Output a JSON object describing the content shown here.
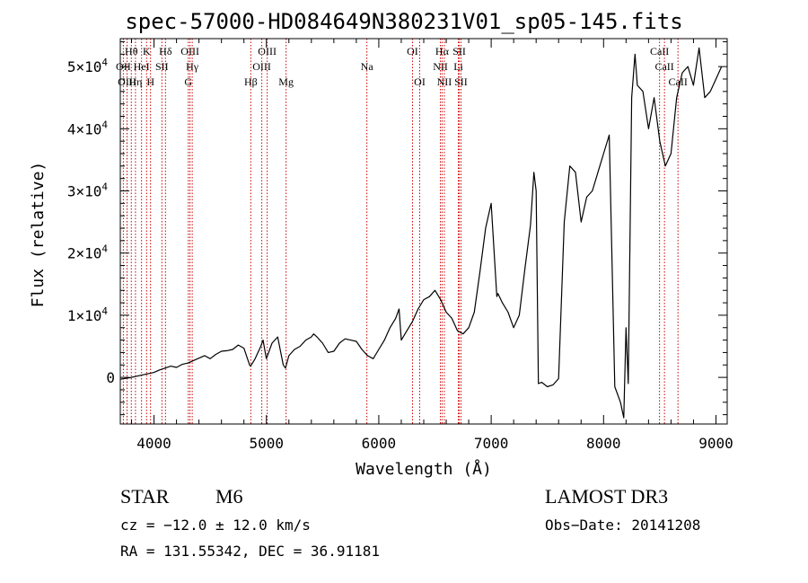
{
  "chart_data": {
    "type": "line",
    "title": "spec-57000-HD084649N380231V01_sp05-145.fits",
    "xlabel": "Wavelength (Å)",
    "ylabel": "Flux (relative)",
    "xlim": [
      3700,
      9100
    ],
    "ylim": [
      -7500,
      54500
    ],
    "x_ticks": [
      4000,
      5000,
      6000,
      7000,
      8000,
      9000
    ],
    "x_tick_labels": [
      "4000",
      "5000",
      "6000",
      "7000",
      "8000",
      "9000"
    ],
    "y_ticks": [
      0,
      10000,
      20000,
      30000,
      40000,
      50000
    ],
    "y_tick_labels": [
      {
        "base": "0",
        "exp": ""
      },
      {
        "base": "1×10",
        "exp": "4"
      },
      {
        "base": "2×10",
        "exp": "4"
      },
      {
        "base": "3×10",
        "exp": "4"
      },
      {
        "base": "4×10",
        "exp": "4"
      },
      {
        "base": "5×10",
        "exp": "4"
      }
    ],
    "line_color": "#000000",
    "marker_color": "#cc0000",
    "spectrum": {
      "x": [
        3700,
        3800,
        3900,
        4000,
        4050,
        4100,
        4150,
        4200,
        4250,
        4300,
        4350,
        4400,
        4450,
        4500,
        4550,
        4600,
        4650,
        4700,
        4750,
        4800,
        4850,
        4860,
        4900,
        4950,
        4970,
        5000,
        5050,
        5100,
        5150,
        5170,
        5200,
        5250,
        5300,
        5350,
        5400,
        5420,
        5450,
        5500,
        5550,
        5600,
        5650,
        5700,
        5750,
        5800,
        5850,
        5900,
        5950,
        6000,
        6050,
        6100,
        6150,
        6180,
        6200,
        6250,
        6300,
        6350,
        6400,
        6450,
        6500,
        6550,
        6600,
        6650,
        6700,
        6750,
        6800,
        6850,
        6900,
        6950,
        7000,
        7050,
        7060,
        7100,
        7150,
        7200,
        7250,
        7300,
        7350,
        7380,
        7400,
        7420,
        7450,
        7500,
        7550,
        7600,
        7650,
        7700,
        7750,
        7800,
        7850,
        7900,
        7950,
        8000,
        8050,
        8100,
        8150,
        8180,
        8200,
        8220,
        8250,
        8280,
        8300,
        8350,
        8400,
        8450,
        8500,
        8550,
        8600,
        8650,
        8700,
        8750,
        8800,
        8850,
        8900,
        8950,
        9000,
        9050
      ],
      "y": [
        -300,
        0,
        400,
        800,
        1200,
        1500,
        1800,
        1600,
        2100,
        2300,
        2700,
        3100,
        3500,
        3000,
        3700,
        4200,
        4300,
        4500,
        5200,
        4700,
        2000,
        1800,
        3000,
        5000,
        6000,
        3000,
        5500,
        6500,
        2000,
        1500,
        3500,
        4500,
        5000,
        6000,
        6500,
        7000,
        6500,
        5500,
        4000,
        4200,
        5500,
        6200,
        6000,
        5800,
        4500,
        3500,
        3000,
        4500,
        6000,
        8000,
        9500,
        11000,
        6000,
        7500,
        9000,
        11000,
        12500,
        13000,
        14000,
        12500,
        10500,
        9500,
        7500,
        7000,
        8000,
        10500,
        17000,
        24000,
        28000,
        13000,
        13500,
        12000,
        10500,
        8000,
        10000,
        17500,
        24500,
        33000,
        30000,
        -1000,
        -800,
        -1500,
        -1200,
        -200,
        25000,
        34000,
        33000,
        25000,
        29000,
        30000,
        33000,
        36000,
        39000,
        -1500,
        -4000,
        -6500,
        8000,
        -1000,
        45000,
        52000,
        47000,
        46000,
        40000,
        45000,
        38000,
        34000,
        36000,
        45000,
        49000,
        50000,
        47000,
        53000,
        45000,
        46000,
        48000,
        50000
      ]
    },
    "lines": [
      {
        "label": "Hθ",
        "wl": 3798,
        "row": 1
      },
      {
        "label": "OII",
        "wl": 3727,
        "row": 2
      },
      {
        "label": "OIII",
        "wl": 3760,
        "row": 3
      },
      {
        "label": "HeI",
        "wl": 3889,
        "row": 2
      },
      {
        "label": "Hη",
        "wl": 3835,
        "row": 3
      },
      {
        "label": "K",
        "wl": 3934,
        "row": 1
      },
      {
        "label": "SII",
        "wl": 4070,
        "row": 2
      },
      {
        "label": "H",
        "wl": 3969,
        "row": 3
      },
      {
        "label": "Hδ",
        "wl": 4102,
        "row": 1
      },
      {
        "label": "OIII",
        "wl": 4320,
        "row": 1
      },
      {
        "label": "Hγ",
        "wl": 4340,
        "row": 2
      },
      {
        "label": "G",
        "wl": 4305,
        "row": 3
      },
      {
        "label": "OIII",
        "wl": 5007,
        "row": 1
      },
      {
        "label": "OIII",
        "wl": 4959,
        "row": 2
      },
      {
        "label": "Hβ",
        "wl": 4861,
        "row": 3
      },
      {
        "label": "Mg",
        "wl": 5175,
        "row": 3
      },
      {
        "label": "Na",
        "wl": 5894,
        "row": 2
      },
      {
        "label": "OI",
        "wl": 6300,
        "row": 1
      },
      {
        "label": "OI",
        "wl": 6364,
        "row": 3
      },
      {
        "label": "Hα",
        "wl": 6563,
        "row": 1
      },
      {
        "label": "SII",
        "wl": 6716,
        "row": 1
      },
      {
        "label": "NII",
        "wl": 6548,
        "row": 2
      },
      {
        "label": "Li",
        "wl": 6708,
        "row": 2
      },
      {
        "label": "NII",
        "wl": 6583,
        "row": 3
      },
      {
        "label": "SII",
        "wl": 6731,
        "row": 3
      },
      {
        "label": "CaII",
        "wl": 8498,
        "row": 1
      },
      {
        "label": "CaII",
        "wl": 8542,
        "row": 2
      },
      {
        "label": "CaII",
        "wl": 8662,
        "row": 3
      }
    ]
  },
  "info": {
    "object_class": "STAR",
    "subclass": "M6",
    "survey": "LAMOST DR3",
    "cz": "cz = −12.0 ± 12.0 km/s",
    "obs_date": "Obs−Date: 20141208",
    "coords": "RA = 131.55342, DEC =  36.91181"
  }
}
